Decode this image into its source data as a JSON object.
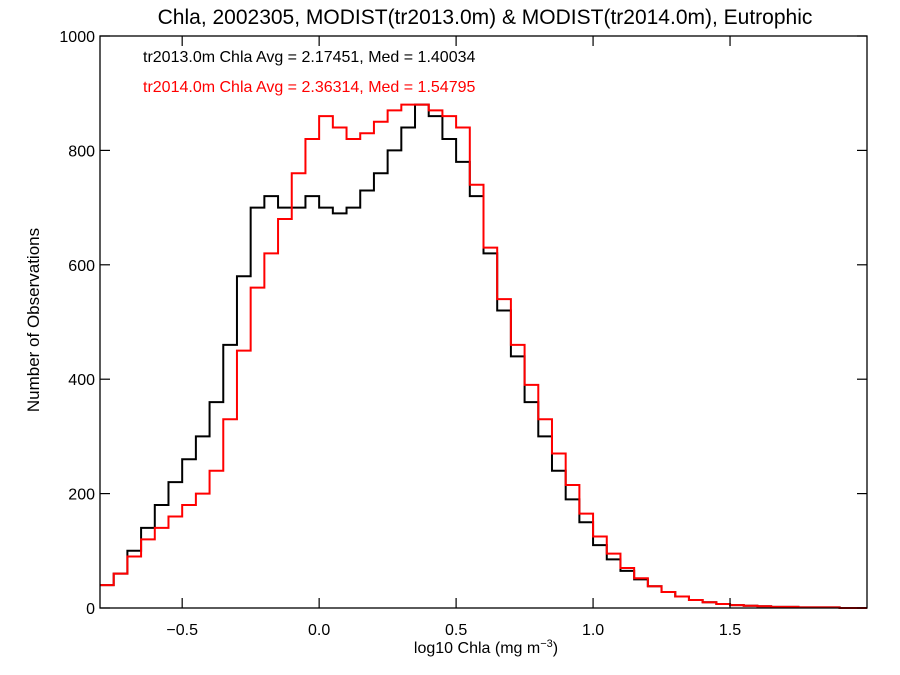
{
  "chart_data": {
    "type": "line",
    "step": true,
    "title": "Chla, 2002305, MODIST(tr2013.0m) & MODIST(tr2014.0m), Eutrophic",
    "xlabel_main": "log10 Chla (mg m",
    "xlabel_sup": "−3",
    "xlabel_close": ")",
    "ylabel": "Number of Observations",
    "xlim": [
      -0.8,
      2.0
    ],
    "ylim": [
      0,
      1000
    ],
    "xticks": [
      -0.5,
      0.0,
      0.5,
      1.0,
      1.5
    ],
    "xtick_labels": [
      "−0.5",
      "0.0",
      "0.5",
      "1.0",
      "1.5"
    ],
    "yticks": [
      0,
      200,
      400,
      600,
      800,
      1000
    ],
    "ytick_labels": [
      "0",
      "200",
      "400",
      "600",
      "800",
      "1000"
    ],
    "annotations": [
      {
        "text": "tr2013.0m Chla Avg = 2.17451, Med = 1.40034",
        "color": "#000000"
      },
      {
        "text": "tr2014.0m Chla Avg = 2.36314, Med = 1.54795",
        "color": "#ff0000"
      }
    ],
    "series": [
      {
        "color": "#000000",
        "x": [
          -0.8,
          -0.75,
          -0.7,
          -0.65,
          -0.6,
          -0.55,
          -0.5,
          -0.45,
          -0.4,
          -0.35,
          -0.3,
          -0.25,
          -0.2,
          -0.15,
          -0.1,
          -0.05,
          0.0,
          0.05,
          0.1,
          0.15,
          0.2,
          0.25,
          0.3,
          0.35,
          0.4,
          0.45,
          0.5,
          0.55,
          0.6,
          0.65,
          0.7,
          0.75,
          0.8,
          0.85,
          0.9,
          0.95,
          1.0,
          1.05,
          1.1,
          1.15,
          1.2,
          1.25,
          1.3,
          1.35,
          1.4,
          1.45,
          1.5,
          1.55,
          1.6,
          1.65,
          1.7,
          1.75,
          1.8,
          1.85,
          1.9,
          1.95,
          2.0
        ],
        "y": [
          40,
          60,
          100,
          140,
          180,
          220,
          260,
          300,
          360,
          460,
          580,
          700,
          720,
          700,
          700,
          720,
          700,
          690,
          700,
          730,
          760,
          800,
          840,
          880,
          860,
          820,
          780,
          720,
          620,
          520,
          440,
          360,
          300,
          240,
          190,
          150,
          110,
          85,
          65,
          50,
          38,
          28,
          20,
          14,
          10,
          7,
          5,
          4,
          3,
          2,
          2,
          1,
          1,
          1,
          0,
          0,
          0
        ]
      },
      {
        "color": "#ff0000",
        "x": [
          -0.8,
          -0.75,
          -0.7,
          -0.65,
          -0.6,
          -0.55,
          -0.5,
          -0.45,
          -0.4,
          -0.35,
          -0.3,
          -0.25,
          -0.2,
          -0.15,
          -0.1,
          -0.05,
          0.0,
          0.05,
          0.1,
          0.15,
          0.2,
          0.25,
          0.3,
          0.35,
          0.4,
          0.45,
          0.5,
          0.55,
          0.6,
          0.65,
          0.7,
          0.75,
          0.8,
          0.85,
          0.9,
          0.95,
          1.0,
          1.05,
          1.1,
          1.15,
          1.2,
          1.25,
          1.3,
          1.35,
          1.4,
          1.45,
          1.5,
          1.55,
          1.6,
          1.65,
          1.7,
          1.75,
          1.8,
          1.85,
          1.9,
          1.95,
          2.0
        ],
        "y": [
          40,
          60,
          90,
          120,
          140,
          160,
          180,
          200,
          240,
          330,
          450,
          560,
          620,
          680,
          760,
          820,
          860,
          840,
          820,
          830,
          850,
          870,
          880,
          880,
          870,
          860,
          840,
          740,
          630,
          540,
          460,
          390,
          330,
          270,
          215,
          165,
          125,
          95,
          70,
          52,
          38,
          28,
          20,
          14,
          10,
          7,
          5,
          4,
          3,
          2,
          2,
          1,
          1,
          1,
          0,
          0,
          0
        ]
      }
    ]
  }
}
